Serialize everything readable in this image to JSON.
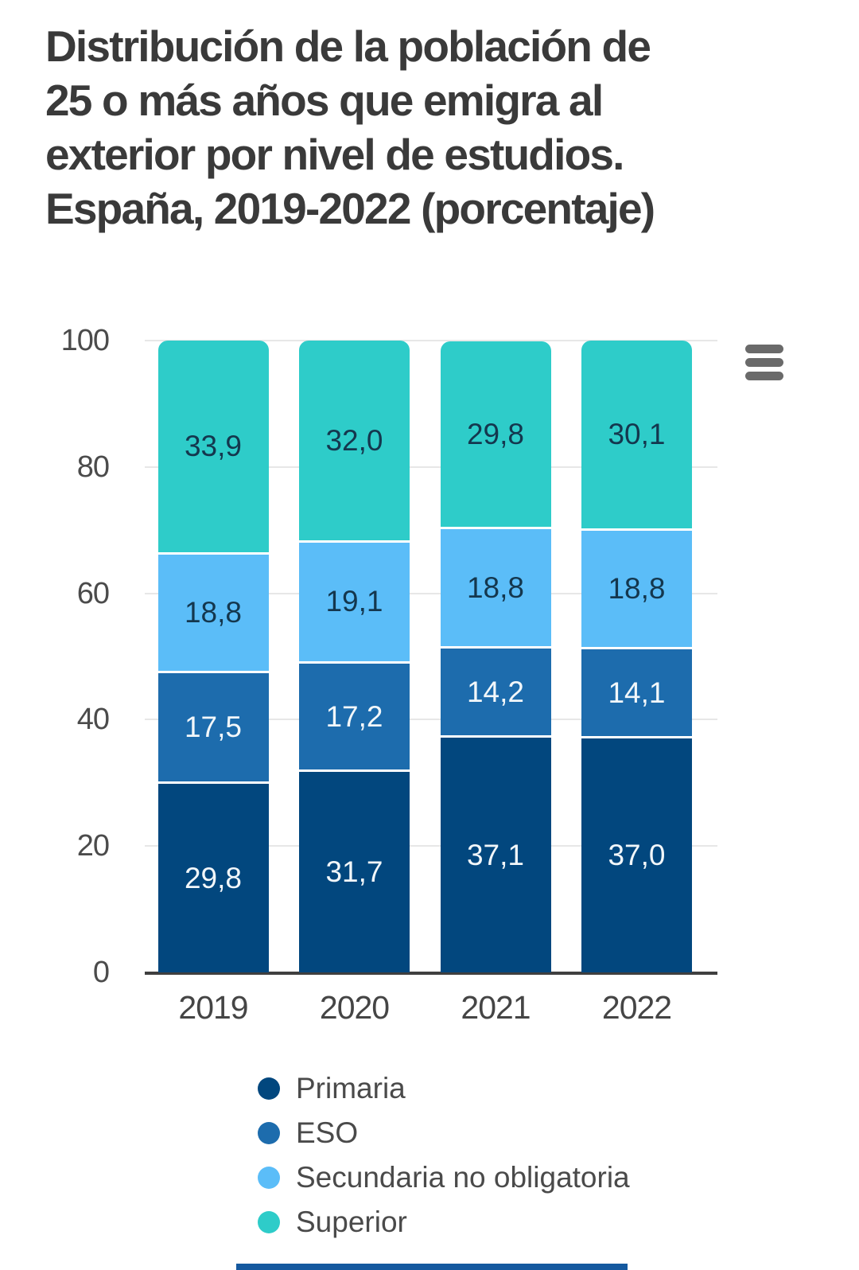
{
  "title": {
    "full": "Distribución de la población de 25 o más años que emigra al exterior por nivel de estudios. España, 2019-2022 (porcentaje)",
    "lines": [
      "Distribución de la población de",
      "25 o más años que emigra al",
      "exterior por nivel de estudios.",
      "España, 2019-2022 (porcentaje)"
    ]
  },
  "icons": {
    "menu": "hamburger-icon"
  },
  "chart_data": {
    "type": "bar",
    "stacked": true,
    "title": "Distribución de la población de 25 o más años que emigra al exterior por nivel de estudios. España, 2019-2022 (porcentaje)",
    "categories": [
      "2019",
      "2020",
      "2021",
      "2022"
    ],
    "series": [
      {
        "name": "Primaria",
        "color": "#02477e",
        "label_color": "#f2f7fa",
        "values": [
          29.8,
          31.7,
          37.1,
          37.0
        ],
        "labels": [
          "29,8",
          "31,7",
          "37,1",
          "37,0"
        ]
      },
      {
        "name": "ESO",
        "color": "#1d6cad",
        "label_color": "#f2f7fa",
        "values": [
          17.5,
          17.2,
          14.2,
          14.1
        ],
        "labels": [
          "17,5",
          "17,2",
          "14,2",
          "14,1"
        ]
      },
      {
        "name": "Secundaria no obligatoria",
        "color": "#5bbdf8",
        "label_color": "#14374e",
        "values": [
          18.8,
          19.1,
          18.8,
          18.8
        ],
        "labels": [
          "18,8",
          "19,1",
          "18,8",
          "18,8"
        ]
      },
      {
        "name": "Superior",
        "color": "#2eccc9",
        "label_color": "#14374e",
        "values": [
          33.9,
          32.0,
          29.8,
          30.1
        ],
        "labels": [
          "33,9",
          "32,0",
          "29,8",
          "30,1"
        ]
      }
    ],
    "xlabel": "",
    "ylabel": "",
    "ylim": [
      0,
      100
    ],
    "y_ticks": [
      100,
      80,
      60,
      40,
      20,
      0
    ],
    "grid": true,
    "legend_position": "bottom-left"
  },
  "colors": {
    "title_text": "#3a3a3a",
    "axis_text": "#4b4b4b",
    "gridline": "#e7e7e7",
    "axis_line": "#3f3f3f",
    "menu_icon": "#6a6a6a",
    "bottom_bar": "#15599f"
  }
}
